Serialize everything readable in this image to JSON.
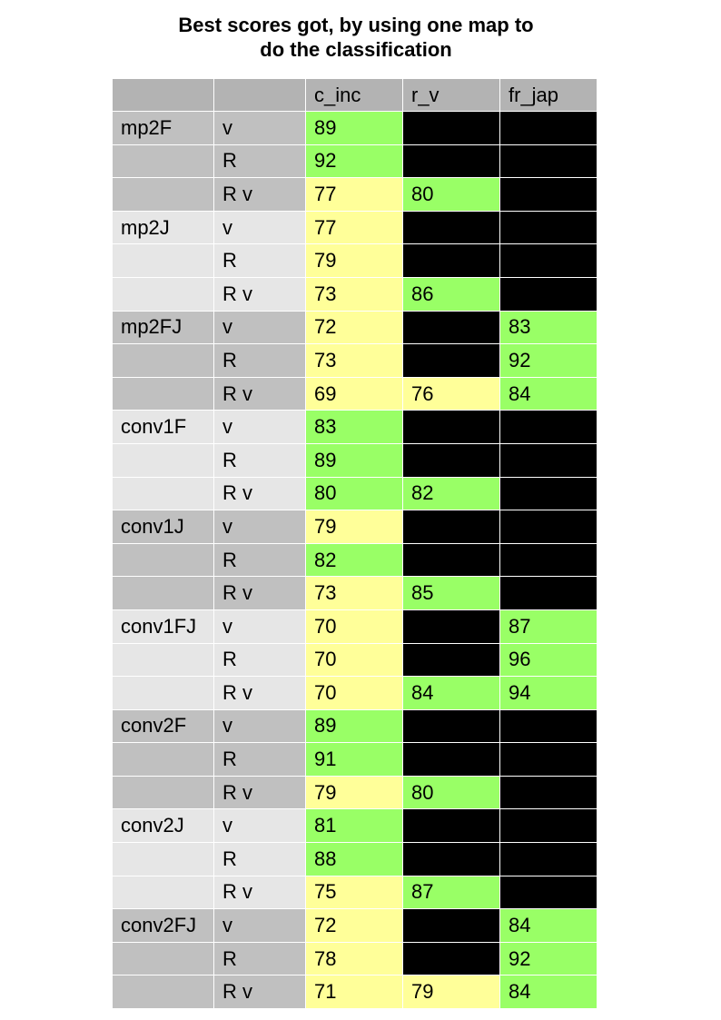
{
  "title_lines": [
    "Best scores got, by using one map to",
    "do the classification"
  ],
  "columns": [
    "",
    "",
    "c_inc",
    "r_v",
    "fr_jap"
  ],
  "colors": {
    "good": "#99ff66",
    "medium": "#ffff99",
    "na": "#000000",
    "header": "#b3b3b3"
  },
  "rows": [
    {
      "map": "mp2F",
      "feat": "v",
      "c_inc": "89",
      "r_v": null,
      "fr_jap": null,
      "c_inc_cls": "good",
      "r_v_cls": "na",
      "fr_jap_cls": "na"
    },
    {
      "map": "",
      "feat": "R",
      "c_inc": "92",
      "r_v": null,
      "fr_jap": null,
      "c_inc_cls": "good",
      "r_v_cls": "na",
      "fr_jap_cls": "na"
    },
    {
      "map": "",
      "feat": "R v",
      "c_inc": "77",
      "r_v": "80",
      "fr_jap": null,
      "c_inc_cls": "medium",
      "r_v_cls": "good",
      "fr_jap_cls": "na"
    },
    {
      "map": "mp2J",
      "feat": "v",
      "c_inc": "77",
      "r_v": null,
      "fr_jap": null,
      "c_inc_cls": "medium",
      "r_v_cls": "na",
      "fr_jap_cls": "na"
    },
    {
      "map": "",
      "feat": "R",
      "c_inc": "79",
      "r_v": null,
      "fr_jap": null,
      "c_inc_cls": "medium",
      "r_v_cls": "na",
      "fr_jap_cls": "na"
    },
    {
      "map": "",
      "feat": "R v",
      "c_inc": "73",
      "r_v": "86",
      "fr_jap": null,
      "c_inc_cls": "medium",
      "r_v_cls": "good",
      "fr_jap_cls": "na"
    },
    {
      "map": "mp2FJ",
      "feat": "v",
      "c_inc": "72",
      "r_v": null,
      "fr_jap": "83",
      "c_inc_cls": "medium",
      "r_v_cls": "na",
      "fr_jap_cls": "good"
    },
    {
      "map": "",
      "feat": "R",
      "c_inc": "73",
      "r_v": null,
      "fr_jap": "92",
      "c_inc_cls": "medium",
      "r_v_cls": "na",
      "fr_jap_cls": "good"
    },
    {
      "map": "",
      "feat": "R v",
      "c_inc": "69",
      "r_v": "76",
      "fr_jap": "84",
      "c_inc_cls": "medium",
      "r_v_cls": "medium",
      "fr_jap_cls": "good"
    },
    {
      "map": "conv1F",
      "feat": "v",
      "c_inc": "83",
      "r_v": null,
      "fr_jap": null,
      "c_inc_cls": "good",
      "r_v_cls": "na",
      "fr_jap_cls": "na"
    },
    {
      "map": "",
      "feat": "R",
      "c_inc": "89",
      "r_v": null,
      "fr_jap": null,
      "c_inc_cls": "good",
      "r_v_cls": "na",
      "fr_jap_cls": "na"
    },
    {
      "map": "",
      "feat": "R v",
      "c_inc": "80",
      "r_v": "82",
      "fr_jap": null,
      "c_inc_cls": "good",
      "r_v_cls": "good",
      "fr_jap_cls": "na"
    },
    {
      "map": "conv1J",
      "feat": "v",
      "c_inc": "79",
      "r_v": null,
      "fr_jap": null,
      "c_inc_cls": "medium",
      "r_v_cls": "na",
      "fr_jap_cls": "na"
    },
    {
      "map": "",
      "feat": "R",
      "c_inc": "82",
      "r_v": null,
      "fr_jap": null,
      "c_inc_cls": "good",
      "r_v_cls": "na",
      "fr_jap_cls": "na"
    },
    {
      "map": "",
      "feat": "R v",
      "c_inc": "73",
      "r_v": "85",
      "fr_jap": null,
      "c_inc_cls": "medium",
      "r_v_cls": "good",
      "fr_jap_cls": "na"
    },
    {
      "map": "conv1FJ",
      "feat": "v",
      "c_inc": "70",
      "r_v": null,
      "fr_jap": "87",
      "c_inc_cls": "medium",
      "r_v_cls": "na",
      "fr_jap_cls": "good"
    },
    {
      "map": "",
      "feat": "R",
      "c_inc": "70",
      "r_v": null,
      "fr_jap": "96",
      "c_inc_cls": "medium",
      "r_v_cls": "na",
      "fr_jap_cls": "good"
    },
    {
      "map": "",
      "feat": "R v",
      "c_inc": "70",
      "r_v": "84",
      "fr_jap": "94",
      "c_inc_cls": "medium",
      "r_v_cls": "good",
      "fr_jap_cls": "good"
    },
    {
      "map": "conv2F",
      "feat": "v",
      "c_inc": "89",
      "r_v": null,
      "fr_jap": null,
      "c_inc_cls": "good",
      "r_v_cls": "na",
      "fr_jap_cls": "na"
    },
    {
      "map": "",
      "feat": "R",
      "c_inc": "91",
      "r_v": null,
      "fr_jap": null,
      "c_inc_cls": "good",
      "r_v_cls": "na",
      "fr_jap_cls": "na"
    },
    {
      "map": "",
      "feat": "R v",
      "c_inc": "79",
      "r_v": "80",
      "fr_jap": null,
      "c_inc_cls": "medium",
      "r_v_cls": "good",
      "fr_jap_cls": "na"
    },
    {
      "map": "conv2J",
      "feat": "v",
      "c_inc": "81",
      "r_v": null,
      "fr_jap": null,
      "c_inc_cls": "good",
      "r_v_cls": "na",
      "fr_jap_cls": "na"
    },
    {
      "map": "",
      "feat": "R",
      "c_inc": "88",
      "r_v": null,
      "fr_jap": null,
      "c_inc_cls": "good",
      "r_v_cls": "na",
      "fr_jap_cls": "na"
    },
    {
      "map": "",
      "feat": "R v",
      "c_inc": "75",
      "r_v": "87",
      "fr_jap": null,
      "c_inc_cls": "medium",
      "r_v_cls": "good",
      "fr_jap_cls": "na"
    },
    {
      "map": "conv2FJ",
      "feat": "v",
      "c_inc": "72",
      "r_v": null,
      "fr_jap": "84",
      "c_inc_cls": "medium",
      "r_v_cls": "na",
      "fr_jap_cls": "good"
    },
    {
      "map": "",
      "feat": "R",
      "c_inc": "78",
      "r_v": null,
      "fr_jap": "92",
      "c_inc_cls": "medium",
      "r_v_cls": "na",
      "fr_jap_cls": "good"
    },
    {
      "map": "",
      "feat": "R v",
      "c_inc": "71",
      "r_v": "79",
      "fr_jap": "84",
      "c_inc_cls": "medium",
      "r_v_cls": "medium",
      "fr_jap_cls": "good"
    }
  ]
}
